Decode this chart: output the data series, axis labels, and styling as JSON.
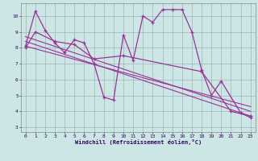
{
  "background_color": "#cce5e5",
  "line_color": "#993399",
  "grid_color": "#aabbbb",
  "xlabel": "Windchill (Refroidissement éolien,°C)",
  "ylabel_ticks": [
    3,
    4,
    5,
    6,
    7,
    8,
    9,
    10
  ],
  "xlabel_ticks": [
    0,
    1,
    2,
    3,
    4,
    5,
    6,
    7,
    8,
    9,
    10,
    11,
    12,
    13,
    14,
    15,
    16,
    17,
    18,
    19,
    20,
    21,
    22,
    23
  ],
  "ylim_min": 2.7,
  "ylim_max": 10.8,
  "xlim_min": -0.5,
  "xlim_max": 23.5,
  "series1_x": [
    0,
    1,
    2,
    3,
    4,
    5,
    6,
    7,
    8,
    9,
    10,
    11,
    12,
    13,
    14,
    15,
    16,
    17,
    18,
    19,
    20,
    22,
    23
  ],
  "series1_y": [
    8.1,
    10.3,
    9.1,
    8.3,
    7.7,
    8.5,
    8.3,
    7.0,
    4.9,
    4.7,
    8.8,
    7.2,
    10.0,
    9.6,
    10.4,
    10.4,
    10.4,
    9.0,
    6.6,
    5.0,
    5.9,
    3.9,
    3.6
  ],
  "series2_x": [
    0,
    1,
    3,
    5,
    7,
    10,
    18,
    21,
    23
  ],
  "series2_y": [
    8.0,
    9.0,
    8.4,
    8.2,
    7.3,
    7.5,
    6.5,
    4.0,
    3.7
  ],
  "trend1_x": [
    0,
    23
  ],
  "trend1_y": [
    8.7,
    4.0
  ],
  "trend2_x": [
    0,
    23
  ],
  "trend2_y": [
    8.4,
    3.7
  ],
  "trend3_x": [
    0,
    23
  ],
  "trend3_y": [
    8.1,
    4.3
  ]
}
